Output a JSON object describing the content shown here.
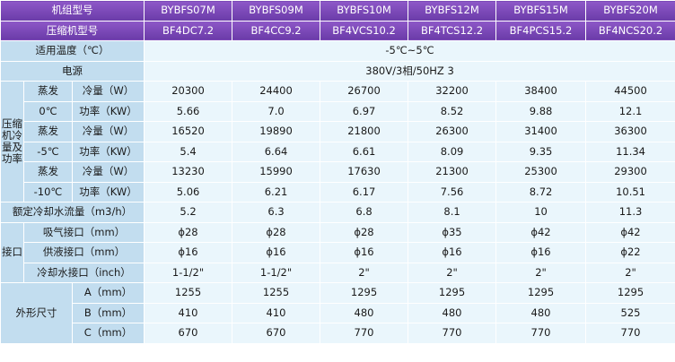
{
  "headers": {
    "unit_model_label": "机组型号",
    "unit_models": [
      "BYBFS07M",
      "BYBFS09M",
      "BYBFS10M",
      "BYBFS12M",
      "BYBFS15M",
      "BYBFS20M"
    ],
    "compressor_model_label": "压缩机型号",
    "compressor_models": [
      "BF4DC7.2",
      "BF4CC9.2",
      "BF4VCS10.2",
      "BF4TCS12.2",
      "BF4PCS15.2",
      "BF4NCS20.2"
    ]
  },
  "ambient": {
    "label": "适用温度（℃）",
    "value": "-5℃~5℃"
  },
  "power": {
    "label": "电源",
    "value": "380V/3相/50HZ 3"
  },
  "compressor_group": {
    "label": "压缩机冷量及功率",
    "groups": [
      {
        "evap_label": "蒸发",
        "evap_temp": "0℃",
        "rows": [
          {
            "label": "冷量（W）",
            "values": [
              "20300",
              "24400",
              "26700",
              "32200",
              "38400",
              "44500"
            ]
          },
          {
            "label": "功率（KW）",
            "values": [
              "5.66",
              "7.0",
              "6.97",
              "8.52",
              "9.88",
              "12.1"
            ]
          }
        ]
      },
      {
        "evap_label": "蒸发",
        "evap_temp": "-5℃",
        "rows": [
          {
            "label": "冷量（W）",
            "values": [
              "16520",
              "19890",
              "21800",
              "26300",
              "31400",
              "36300"
            ]
          },
          {
            "label": "功率（KW）",
            "values": [
              "5.4",
              "6.64",
              "6.61",
              "8.09",
              "9.35",
              "11.34"
            ]
          }
        ]
      },
      {
        "evap_label": "蒸发",
        "evap_temp": "-10℃",
        "rows": [
          {
            "label": "冷量（W）",
            "values": [
              "13230",
              "15990",
              "17630",
              "21300",
              "25300",
              "29300"
            ]
          },
          {
            "label": "功率（KW）",
            "values": [
              "5.06",
              "6.21",
              "6.17",
              "7.56",
              "8.72",
              "10.51"
            ]
          }
        ]
      }
    ]
  },
  "coolant_flow": {
    "label": "额定冷却水流量（m3/h）",
    "values": [
      "5.2",
      "6.3",
      "6.8",
      "8.1",
      "10",
      "11.3"
    ]
  },
  "ports": {
    "label": "接口",
    "rows": [
      {
        "label": "吸气接口（mm）",
        "values": [
          "ϕ28",
          "ϕ28",
          "ϕ28",
          "ϕ35",
          "ϕ42",
          "ϕ42"
        ]
      },
      {
        "label": "供液接口（mm）",
        "values": [
          "ϕ16",
          "ϕ16",
          "ϕ16",
          "ϕ16",
          "ϕ16",
          "ϕ22"
        ]
      },
      {
        "label": "冷却水接口（inch）",
        "values": [
          "1-1/2\"",
          "1-1/2\"",
          "2\"",
          "2\"",
          "2\"",
          "2\""
        ]
      }
    ]
  },
  "dimensions": {
    "label": "外形尺寸",
    "rows": [
      {
        "label": "A（mm）",
        "values": [
          "1255",
          "1255",
          "1295",
          "1295",
          "1295",
          "1295"
        ]
      },
      {
        "label": "B（mm）",
        "values": [
          "410",
          "410",
          "480",
          "480",
          "480",
          "525"
        ]
      },
      {
        "label": "C（mm）",
        "values": [
          "670",
          "670",
          "770",
          "770",
          "770",
          "770"
        ]
      }
    ]
  }
}
